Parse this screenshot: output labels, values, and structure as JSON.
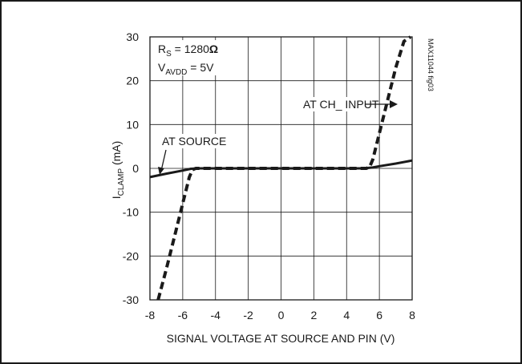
{
  "figure": {
    "id_label": "MAX11044 fig03"
  },
  "annotations": {
    "rs_main": "R",
    "rs_sub": "S",
    "rs_value": " = 1280",
    "rs_unit": "Ω",
    "vavdd_main": "V",
    "vavdd_sub": "AVDD",
    "vavdd_value": " = 5V",
    "at_source": "AT SOURCE",
    "at_ch_input": "AT CH_ INPUT"
  },
  "chart_data": {
    "type": "line",
    "title": "",
    "xlabel": "SIGNAL VOLTAGE AT SOURCE AND PIN (V)",
    "ylabel": "I_CLAMP (mA)",
    "ylabel_main": "I",
    "ylabel_sub": "CLAMP",
    "ylabel_rest": " (mA)",
    "xlim": [
      -8,
      8
    ],
    "ylim": [
      -30,
      30
    ],
    "x_ticks": [
      "-8",
      "-6",
      "-4",
      "-2",
      "0",
      "2",
      "4",
      "6",
      "8"
    ],
    "y_ticks": [
      "30",
      "20",
      "10",
      "0",
      "-10",
      "-20",
      "-30"
    ],
    "x_tick_values": [
      -8,
      -6,
      -4,
      -2,
      0,
      2,
      4,
      6,
      8
    ],
    "y_tick_values": [
      30,
      20,
      10,
      0,
      -10,
      -20,
      -30
    ],
    "grid": true,
    "series": [
      {
        "name": "AT SOURCE",
        "style": "solid",
        "x": [
          -8,
          -7,
          -6,
          -5.5,
          -5,
          0,
          5,
          5.6,
          6,
          7,
          8
        ],
        "y": [
          -2.0,
          -1.2,
          -0.5,
          -0.1,
          0,
          0,
          0,
          0.2,
          0.5,
          1.1,
          1.8
        ]
      },
      {
        "name": "AT CH_ INPUT",
        "style": "dashed",
        "x": [
          -7.5,
          -7.0,
          -6.5,
          -6.0,
          -5.6,
          -5.4,
          -5.2,
          0,
          5.2,
          5.4,
          5.6,
          6.0,
          6.5,
          7.0,
          7.5,
          7.9
        ],
        "y": [
          -30,
          -23,
          -15.5,
          -8,
          -2,
          -0.3,
          0,
          0,
          0,
          0.3,
          2,
          8,
          15.5,
          23,
          29,
          30
        ]
      }
    ]
  }
}
